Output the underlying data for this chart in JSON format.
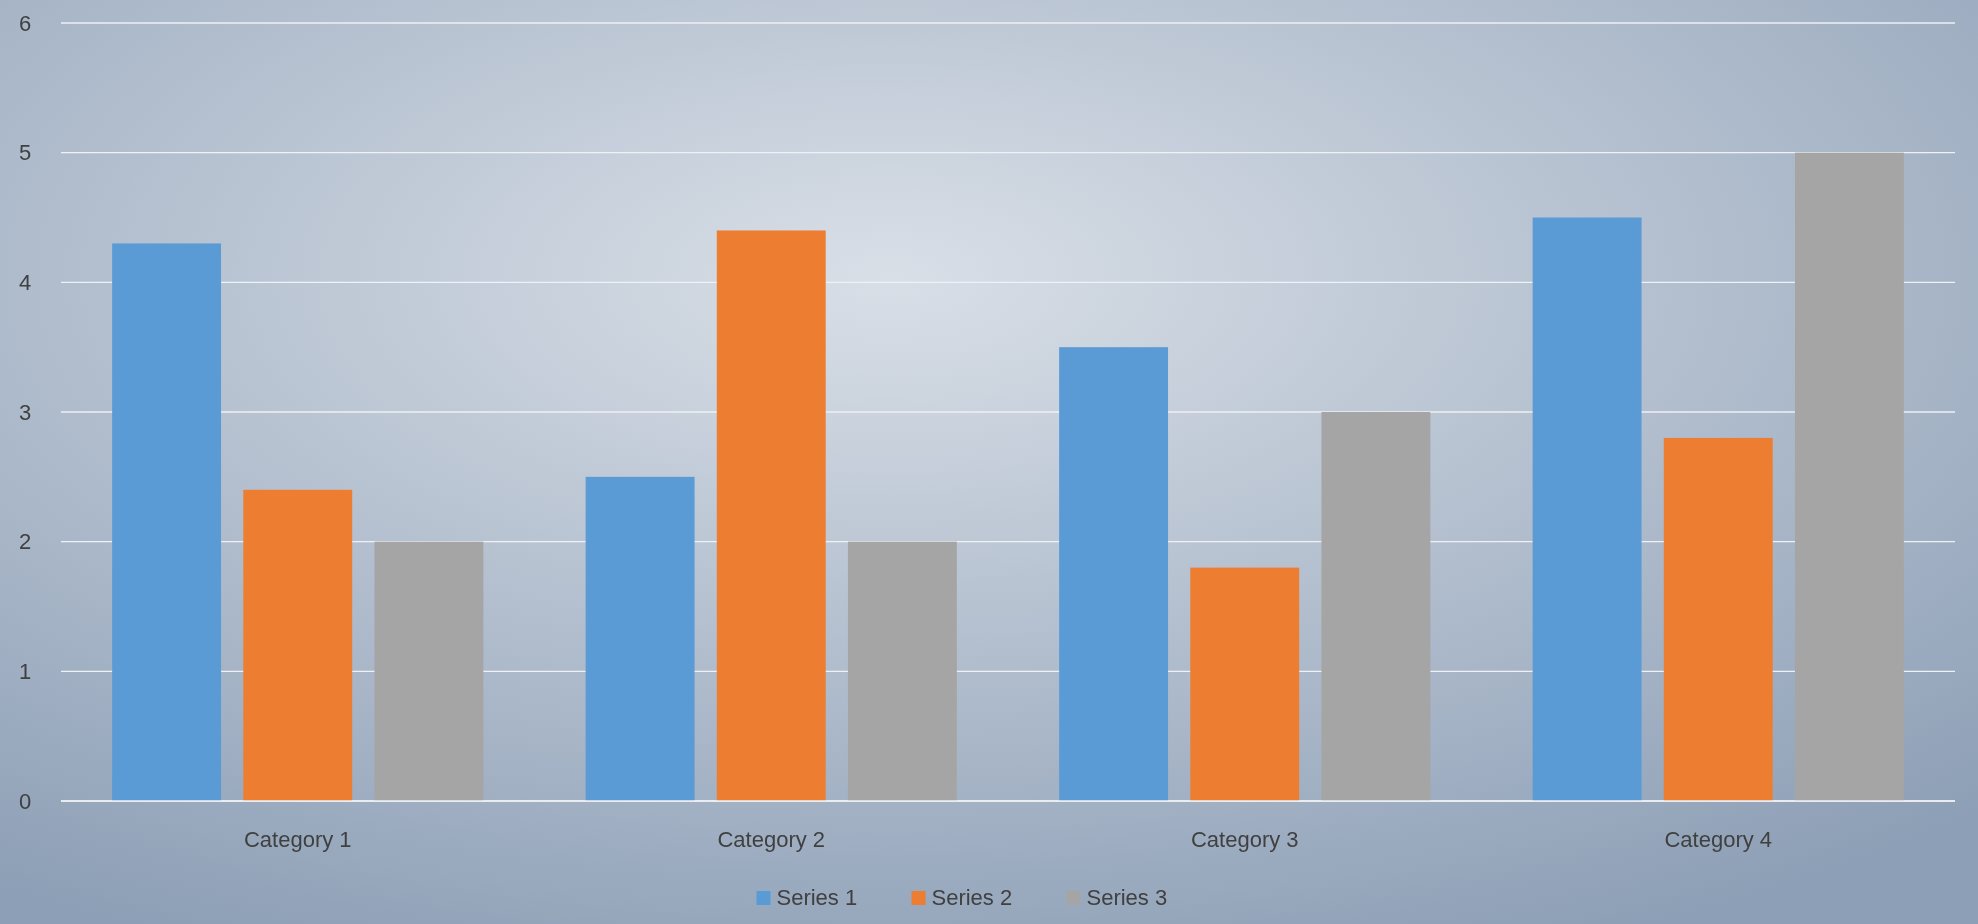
{
  "chart_data": {
    "type": "bar",
    "categories": [
      "Category 1",
      "Category 2",
      "Category 3",
      "Category 4"
    ],
    "series": [
      {
        "name": "Series 1",
        "color": "#5b9bd5",
        "values": [
          4.3,
          2.5,
          3.5,
          4.5
        ]
      },
      {
        "name": "Series 2",
        "color": "#ed7d31",
        "values": [
          2.4,
          4.4,
          1.8,
          2.8
        ]
      },
      {
        "name": "Series 3",
        "color": "#a5a5a5",
        "values": [
          2,
          2,
          3,
          5
        ]
      }
    ],
    "ylim": [
      0,
      6
    ],
    "yticks": [
      0,
      1,
      2,
      3,
      4,
      5,
      6
    ],
    "grid": "y",
    "legend": "bottom"
  }
}
